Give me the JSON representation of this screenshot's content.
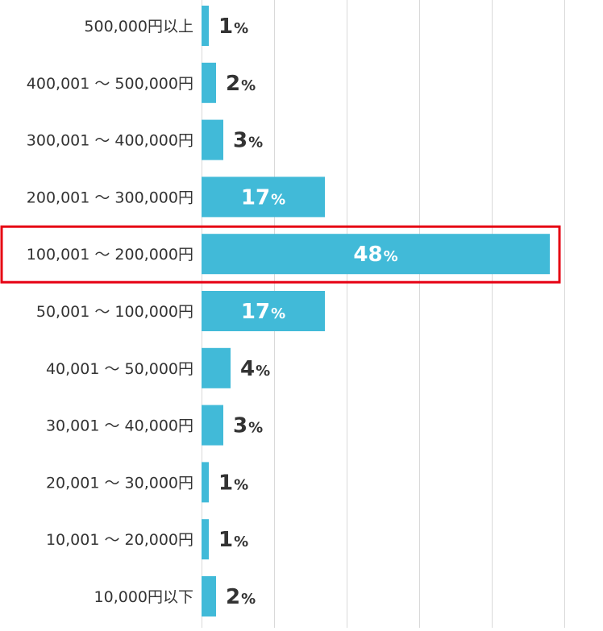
{
  "chart_data": {
    "type": "bar",
    "orientation": "horizontal",
    "categories": [
      "500,000円以上",
      "400,001 ～ 500,000円",
      "300,001 ～ 400,000円",
      "200,001 ～ 300,000円",
      "100,001 ～ 200,000円",
      "50,001 ～ 100,000円",
      "40,001 ～ 50,000円",
      "30,001 ～ 40,000円",
      "20,001 ～ 30,000円",
      "10,001 ～ 20,000円",
      "10,000円以下"
    ],
    "values": [
      1,
      2,
      3,
      17,
      48,
      17,
      4,
      3,
      1,
      1,
      2
    ],
    "value_labels": [
      "1",
      "2",
      "3",
      "17",
      "48",
      "17",
      "4",
      "3",
      "1",
      "1",
      "2"
    ],
    "unit": "%",
    "xlim": [
      0,
      50
    ],
    "grid": true,
    "highlighted_category": "100,001 ～ 200,000円",
    "colors": {
      "bar": "#41bad8",
      "highlight_border": "#e60012",
      "grid": "#d9d9d9",
      "label": "#333333",
      "value_outside": "#333333",
      "value_inside": "#ffffff"
    }
  }
}
